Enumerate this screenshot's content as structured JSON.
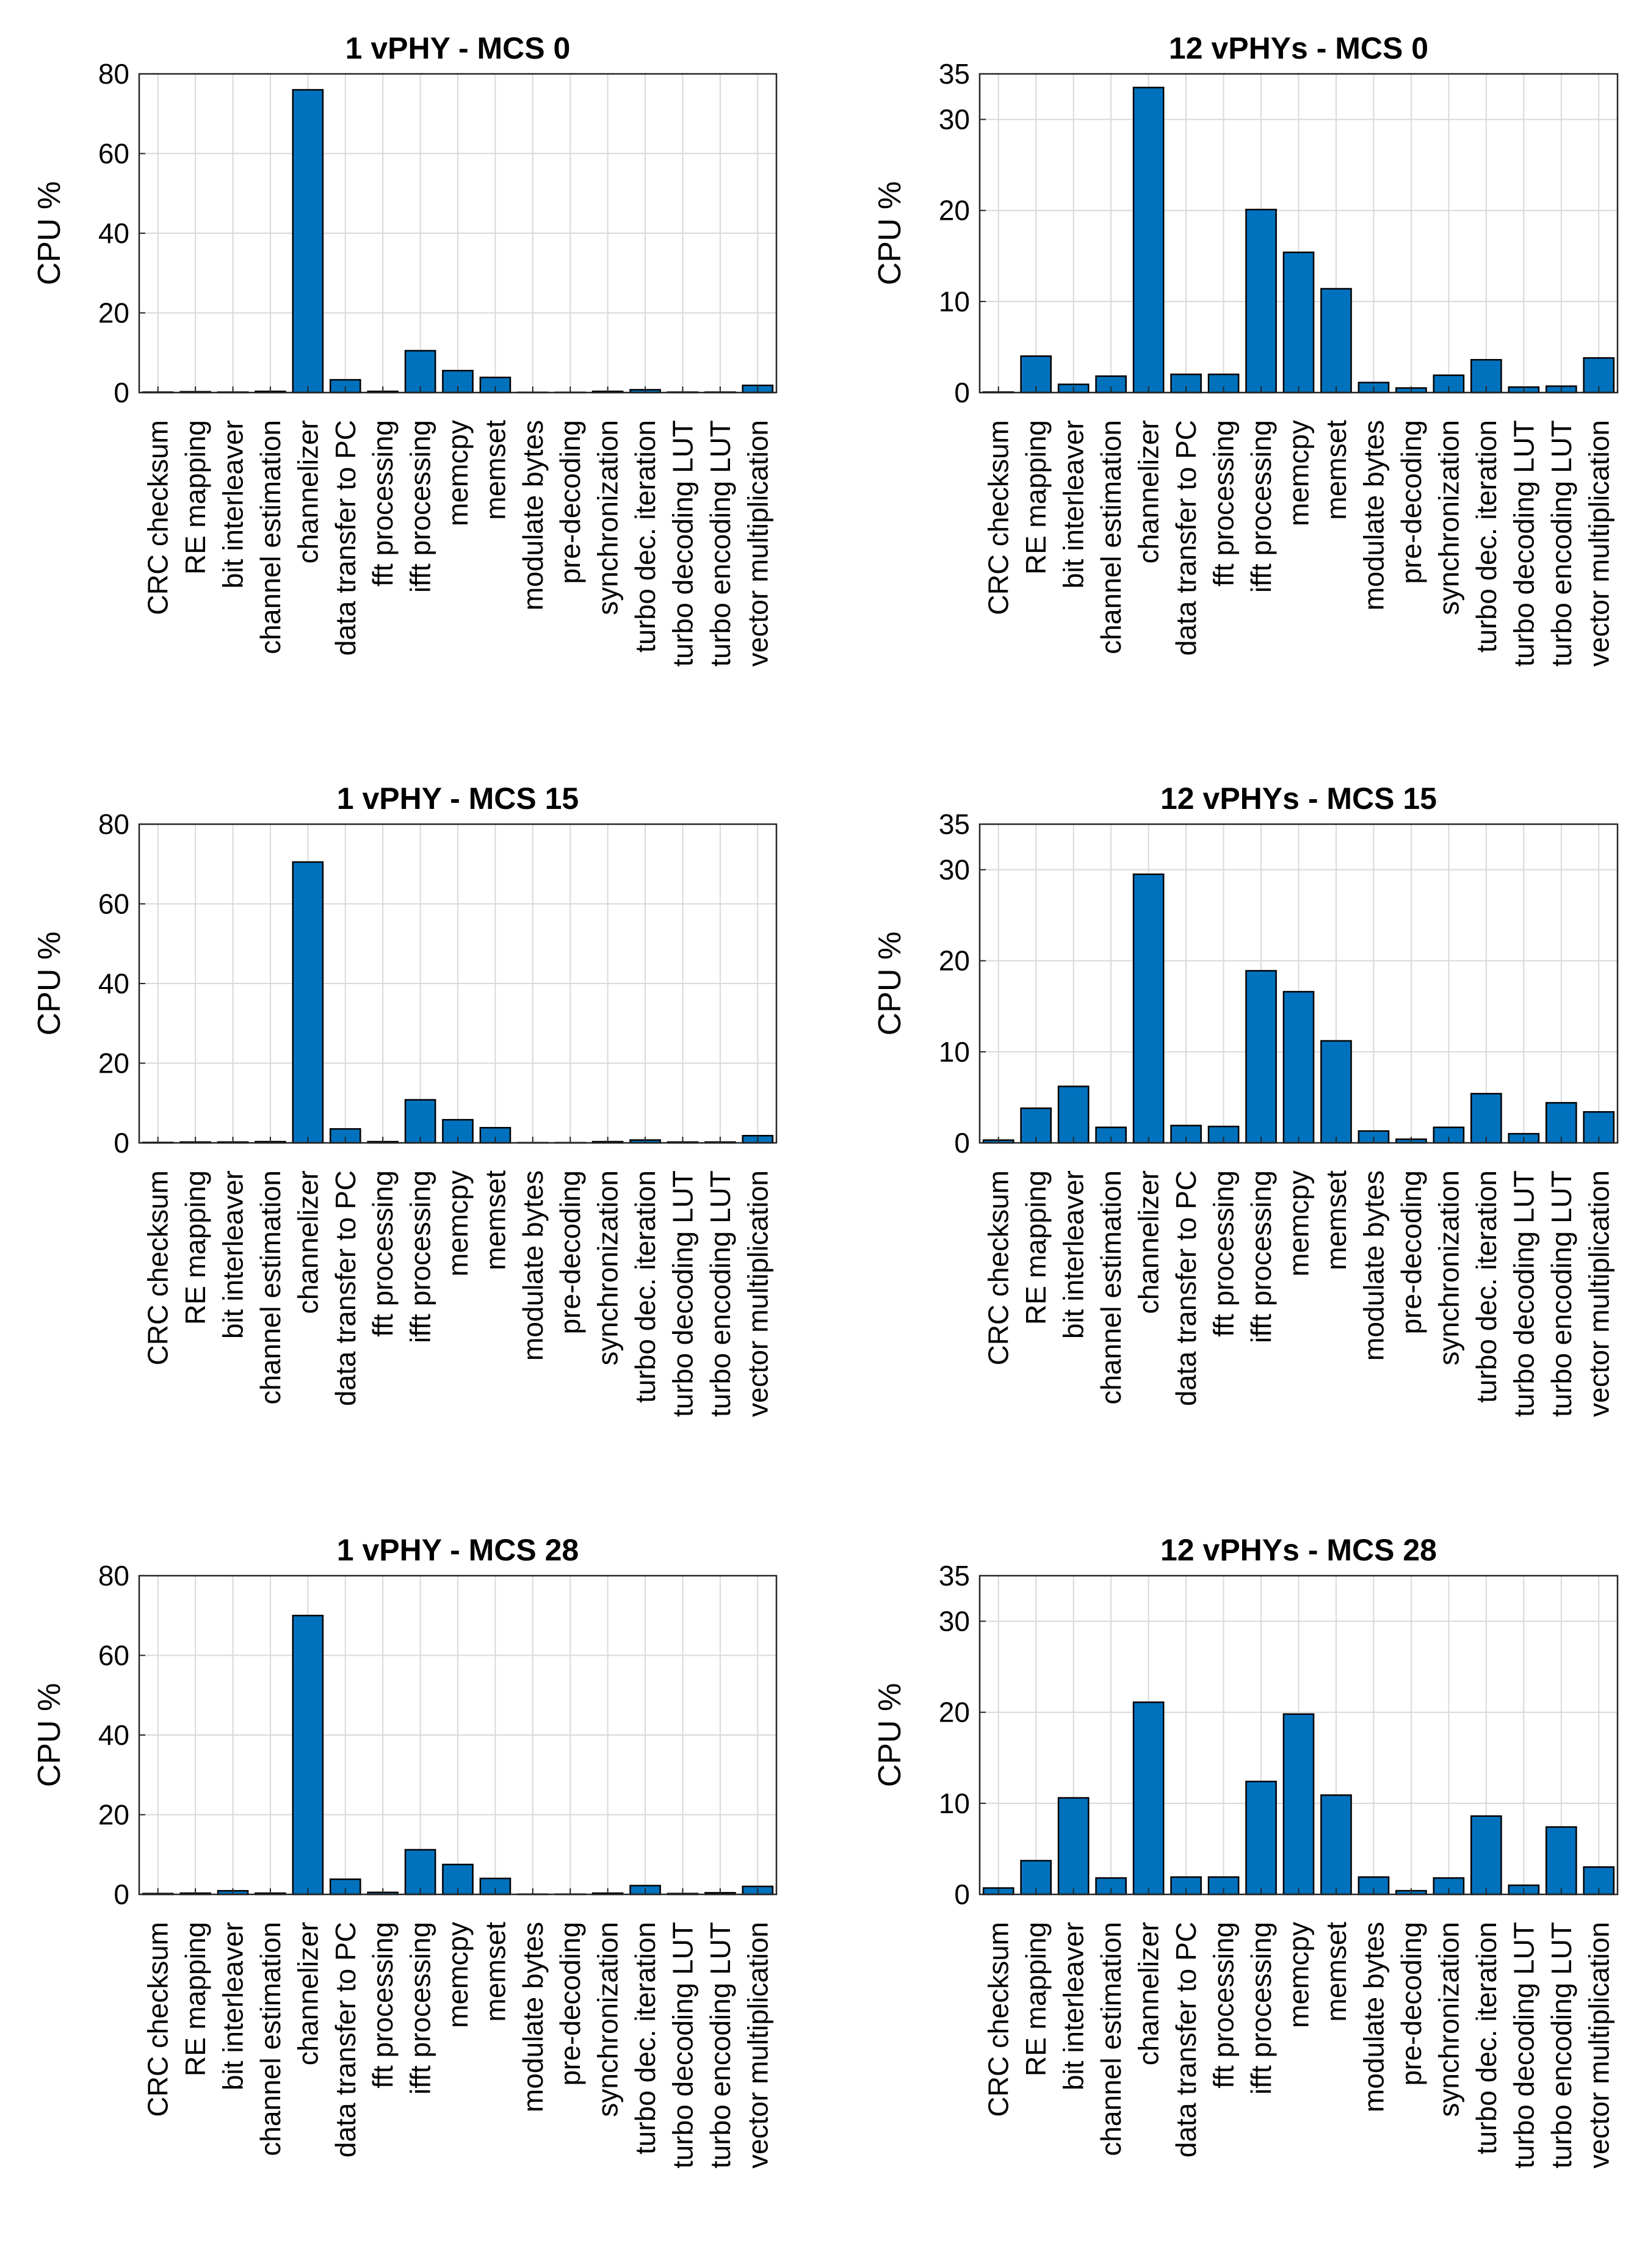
{
  "figure": {
    "bar_color": "#0072BD",
    "bar_edge_color": "#000000",
    "grid_color": "#d9d9d9"
  },
  "chart_data": [
    {
      "type": "bar",
      "title": "1 vPHY - MCS 0",
      "xlabel": "",
      "ylabel": "CPU %",
      "ylim": [
        0,
        80
      ],
      "yticks": [
        "0",
        "20",
        "40",
        "60",
        "80"
      ],
      "grid": true,
      "categories": [
        "CRC checksum",
        "RE mapping",
        "bit interleaver",
        "channel estimation",
        "channelizer",
        "data transfer to PC",
        "fft processing",
        "ifft processing",
        "memcpy",
        "memset",
        "modulate bytes",
        "pre-decoding",
        "synchronization",
        "turbo dec. iteration",
        "turbo decoding LUT",
        "turbo encoding LUT",
        "vector multiplication"
      ],
      "values": [
        0.1,
        0.2,
        0.1,
        0.3,
        76,
        3.2,
        0.3,
        10.5,
        5.5,
        3.8,
        0.05,
        0.05,
        0.3,
        0.7,
        0.1,
        0.1,
        1.8
      ]
    },
    {
      "type": "bar",
      "title": "12 vPHYs - MCS 0",
      "xlabel": "",
      "ylabel": "CPU %",
      "ylim": [
        0,
        35
      ],
      "yticks": [
        "0",
        "10",
        "20",
        "30",
        "35"
      ],
      "grid": true,
      "categories": [
        "CRC checksum",
        "RE mapping",
        "bit interleaver",
        "channel estimation",
        "channelizer",
        "data transfer to PC",
        "fft processing",
        "ifft processing",
        "memcpy",
        "memset",
        "modulate bytes",
        "pre-decoding",
        "synchronization",
        "turbo dec. iteration",
        "turbo decoding LUT",
        "turbo encoding LUT",
        "vector multiplication"
      ],
      "values": [
        0.05,
        4.0,
        0.9,
        1.8,
        33.5,
        2.0,
        2.0,
        20.1,
        15.4,
        11.4,
        1.1,
        0.5,
        1.9,
        3.6,
        0.6,
        0.7,
        3.8
      ]
    },
    {
      "type": "bar",
      "title": "1 vPHY - MCS 15",
      "xlabel": "",
      "ylabel": "CPU %",
      "ylim": [
        0,
        80
      ],
      "yticks": [
        "0",
        "20",
        "40",
        "60",
        "80"
      ],
      "grid": true,
      "categories": [
        "CRC checksum",
        "RE mapping",
        "bit interleaver",
        "channel estimation",
        "channelizer",
        "data transfer to PC",
        "fft processing",
        "ifft processing",
        "memcpy",
        "memset",
        "modulate bytes",
        "pre-decoding",
        "synchronization",
        "turbo dec. iteration",
        "turbo decoding LUT",
        "turbo encoding LUT",
        "vector multiplication"
      ],
      "values": [
        0.1,
        0.2,
        0.2,
        0.3,
        70.5,
        3.5,
        0.3,
        10.8,
        5.8,
        3.8,
        0.05,
        0.05,
        0.3,
        0.7,
        0.2,
        0.2,
        1.8
      ]
    },
    {
      "type": "bar",
      "title": "12 vPHYs - MCS 15",
      "xlabel": "",
      "ylabel": "CPU %",
      "ylim": [
        0,
        35
      ],
      "yticks": [
        "0",
        "10",
        "20",
        "30",
        "35"
      ],
      "grid": true,
      "categories": [
        "CRC checksum",
        "RE mapping",
        "bit interleaver",
        "channel estimation",
        "channelizer",
        "data transfer to PC",
        "fft processing",
        "ifft processing",
        "memcpy",
        "memset",
        "modulate bytes",
        "pre-decoding",
        "synchronization",
        "turbo dec. iteration",
        "turbo decoding LUT",
        "turbo encoding LUT",
        "vector multiplication"
      ],
      "values": [
        0.3,
        3.8,
        6.2,
        1.7,
        29.5,
        1.9,
        1.8,
        18.9,
        16.6,
        11.2,
        1.3,
        0.4,
        1.7,
        5.4,
        1.0,
        4.4,
        3.4
      ]
    },
    {
      "type": "bar",
      "title": "1 vPHY - MCS 28",
      "xlabel": "",
      "ylabel": "CPU %",
      "ylim": [
        0,
        80
      ],
      "yticks": [
        "0",
        "20",
        "40",
        "60",
        "80"
      ],
      "grid": true,
      "categories": [
        "CRC checksum",
        "RE mapping",
        "bit interleaver",
        "channel estimation",
        "channelizer",
        "data transfer to PC",
        "fft processing",
        "ifft processing",
        "memcpy",
        "memset",
        "modulate bytes",
        "pre-decoding",
        "synchronization",
        "turbo dec. iteration",
        "turbo decoding LUT",
        "turbo encoding LUT",
        "vector multiplication"
      ],
      "values": [
        0.2,
        0.3,
        0.9,
        0.3,
        70,
        3.8,
        0.5,
        11.2,
        7.5,
        4.0,
        0.05,
        0.05,
        0.3,
        2.2,
        0.2,
        0.4,
        2.0
      ]
    },
    {
      "type": "bar",
      "title": "12 vPHYs - MCS 28",
      "xlabel": "",
      "ylabel": "CPU %",
      "ylim": [
        0,
        35
      ],
      "yticks": [
        "0",
        "10",
        "20",
        "30",
        "35"
      ],
      "grid": true,
      "categories": [
        "CRC checksum",
        "RE mapping",
        "bit interleaver",
        "channel estimation",
        "channelizer",
        "data transfer to PC",
        "fft processing",
        "ifft processing",
        "memcpy",
        "memset",
        "modulate bytes",
        "pre-decoding",
        "synchronization",
        "turbo dec. iteration",
        "turbo decoding LUT",
        "turbo encoding LUT",
        "vector multiplication"
      ],
      "values": [
        0.7,
        3.7,
        10.6,
        1.8,
        21.1,
        1.9,
        1.9,
        12.4,
        19.8,
        10.9,
        1.9,
        0.4,
        1.8,
        8.6,
        1.0,
        7.4,
        3.0
      ]
    }
  ]
}
